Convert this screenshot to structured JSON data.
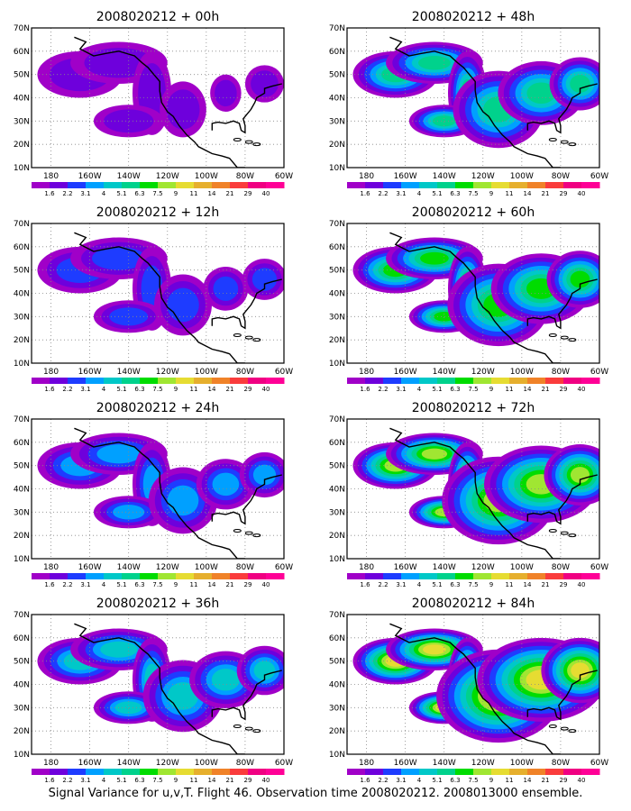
{
  "panels": [
    {
      "title": "2008020212 + 00h",
      "hour": 0
    },
    {
      "title": "2008020212 + 48h",
      "hour": 48
    },
    {
      "title": "2008020212 + 12h",
      "hour": 12
    },
    {
      "title": "2008020212 + 60h",
      "hour": 60
    },
    {
      "title": "2008020212 + 24h",
      "hour": 24
    },
    {
      "title": "2008020212 + 72h",
      "hour": 72
    },
    {
      "title": "2008020212 + 36h",
      "hour": 36
    },
    {
      "title": "2008020212 + 84h",
      "hour": 84
    }
  ],
  "axes": {
    "lon_labels": [
      "180",
      "160W",
      "140W",
      "120W",
      "100W",
      "80W",
      "60W"
    ],
    "lon_values": [
      -180,
      -160,
      -140,
      -120,
      -100,
      -80,
      -60
    ],
    "lat_labels": [
      "10N",
      "20N",
      "30N",
      "40N",
      "50N",
      "60N",
      "70N"
    ],
    "lat_values": [
      10,
      20,
      30,
      40,
      50,
      60,
      70
    ],
    "lon_range": [
      -190,
      -60
    ],
    "lat_range": [
      10,
      70
    ]
  },
  "colorbar": {
    "labels": [
      "1.6",
      "2.2",
      "3.1",
      "4",
      "5.1",
      "6.3",
      "7.5",
      "9",
      "11",
      "14",
      "21",
      "29",
      "40"
    ],
    "colors": [
      "#a000c8",
      "#6e00dc",
      "#1e3cff",
      "#00a0ff",
      "#00c8c8",
      "#00d28c",
      "#00dc00",
      "#a0e632",
      "#e6dc32",
      "#e6af2d",
      "#f08228",
      "#fa3c3c",
      "#f00082",
      "#ff0096"
    ]
  },
  "caption": "Signal Variance for u,v,T. Flight 46. Observation time 2008020212. 2008013000 ensemble."
}
